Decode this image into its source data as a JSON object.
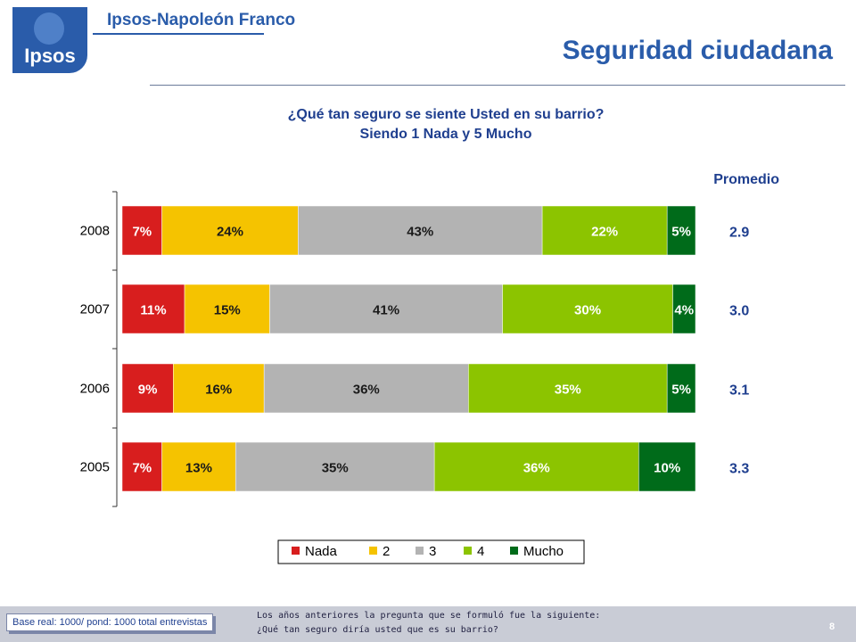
{
  "header": {
    "logo_text": "Ipsos",
    "brand": "Ipsos-Napoleón Franco",
    "title": "Seguridad ciudadana"
  },
  "question": {
    "line1": "¿Qué tan seguro se siente Usted en su barrio?",
    "line2": "Siendo 1 Nada y 5 Mucho"
  },
  "chart_data": {
    "type": "bar",
    "orientation": "horizontal",
    "stacked": true,
    "normalized": true,
    "categories": [
      "2008",
      "2007",
      "2006",
      "2005"
    ],
    "series": [
      {
        "name": "Nada",
        "color": "#d81e1e",
        "values": [
          7,
          11,
          9,
          7
        ],
        "labels": [
          "7%",
          "11%",
          "9%",
          "7%"
        ]
      },
      {
        "name": "2",
        "color": "#f5c300",
        "values": [
          24,
          15,
          16,
          13
        ],
        "labels": [
          "24%",
          "15%",
          "16%",
          "13%"
        ]
      },
      {
        "name": "3",
        "color": "#b3b3b3",
        "values": [
          43,
          41,
          36,
          35
        ],
        "labels": [
          "43%",
          "41%",
          "36%",
          "35%"
        ]
      },
      {
        "name": "4",
        "color": "#8cc400",
        "values": [
          22,
          30,
          35,
          36
        ],
        "labels": [
          "22%",
          "30%",
          "35%",
          "36%"
        ]
      },
      {
        "name": "Mucho",
        "color": "#006b1a",
        "values": [
          5,
          4,
          5,
          10
        ],
        "labels": [
          "5%",
          "4%",
          "5%",
          "10%"
        ]
      }
    ],
    "promedio": {
      "label": "Promedio",
      "values": [
        "2.9",
        "3.0",
        "3.1",
        "3.3"
      ]
    },
    "legend": "bottom-center",
    "grid": false
  },
  "footer": {
    "base": "Base real: 1000/ pond: 1000 total entrevistas",
    "note_line1": "Los años anteriores la pregunta que se formuló fue la siguiente:",
    "note_line2": "¿Qué tan seguro diría usted que es su barrio?",
    "page": "8"
  }
}
